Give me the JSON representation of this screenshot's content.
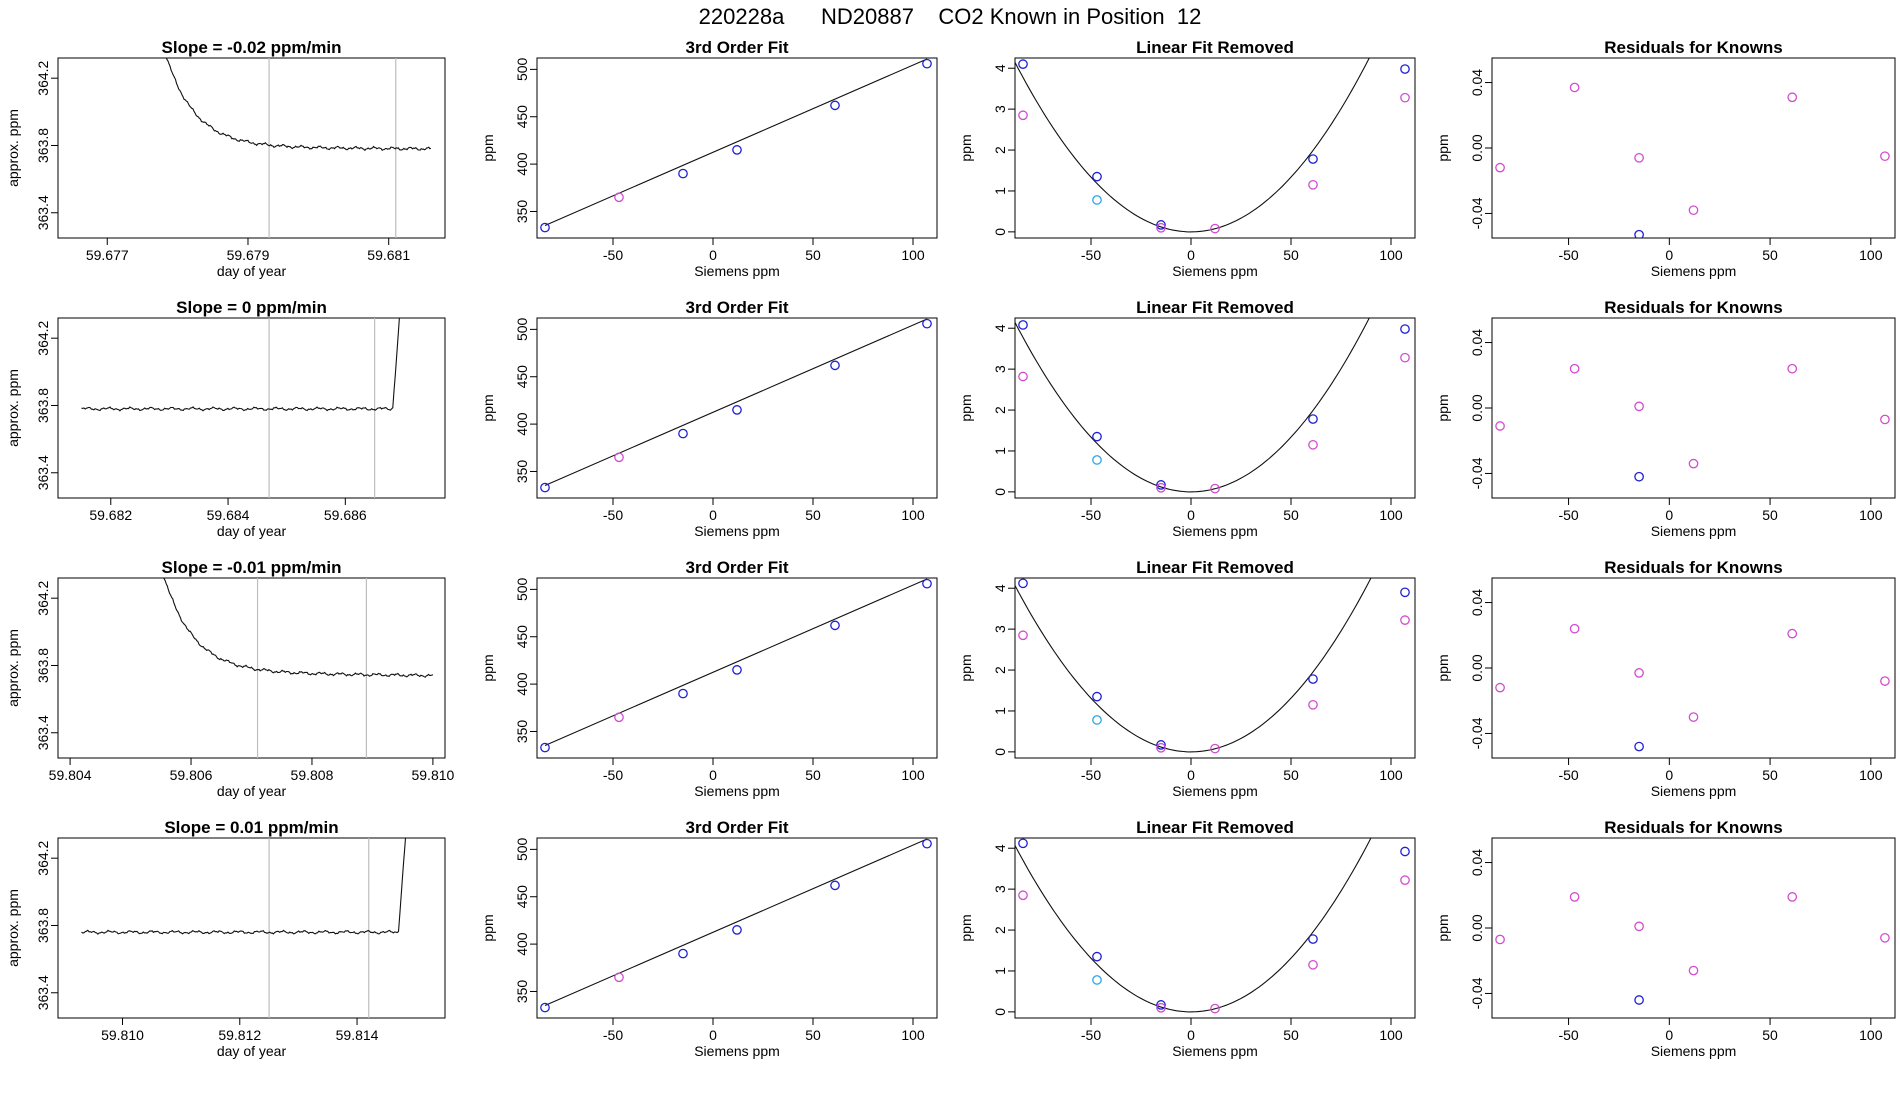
{
  "page": {
    "title": "220228a      ND20887    CO2 Known in Position  12"
  },
  "colors": {
    "blue": "#1f1fd6",
    "magenta": "#d24cd2",
    "cyan": "#2aa7e6",
    "red": "#e02020",
    "line": "#111111",
    "vline": "#bdbdbd"
  },
  "common": {
    "fit_xlabel": "Siemens ppm",
    "fit_ylabel": "ppm",
    "ts_xlabel": "day of year",
    "ts_ylabel": "approx. ppm",
    "fit3_title": "3rd Order Fit",
    "lin_title": "Linear Fit Removed",
    "res_title": "Residuals for Knowns",
    "x_ticks": [
      -50,
      0,
      50,
      100
    ],
    "fit3_yticks": [
      350,
      400,
      450,
      500
    ],
    "lin_yticks": [
      0,
      1,
      2,
      3,
      4
    ],
    "res_yticks": [
      -0.04,
      0.0,
      0.04
    ],
    "res_ytick_labels": [
      "-0.04",
      "0.00",
      "0.04"
    ],
    "ts_yticks": [
      363.4,
      363.8,
      364.2
    ],
    "ts_ytick_labels": [
      "363.4",
      "363.8",
      "364.2"
    ]
  },
  "chart_data": [
    {
      "type": "line",
      "title": "Slope =  -0.02  ppm/min",
      "xlabel": "day of year",
      "ylabel": "approx. ppm",
      "xlim": [
        59.6763,
        59.6818
      ],
      "ylim": [
        363.25,
        364.32
      ],
      "x_ticks": [
        59.677,
        59.679,
        59.681
      ],
      "x_tick_labels": [
        "59.677",
        "59.679",
        "59.681"
      ],
      "vlines": [
        59.6793,
        59.6811
      ],
      "x_start": 59.6776,
      "x_end": 59.6816,
      "shape": "decay_from_high",
      "base": 363.79,
      "end_value": 363.78
    },
    {
      "type": "scatter",
      "title": "3rd Order Fit",
      "xlabel": "Siemens ppm",
      "ylabel": "ppm",
      "xlim": [
        -88,
        112
      ],
      "ylim": [
        322,
        512
      ],
      "points": [
        {
          "x": -84,
          "y": 333,
          "color": "blue"
        },
        {
          "x": -47,
          "y": 365,
          "color": "magenta"
        },
        {
          "x": -15,
          "y": 390,
          "color": "blue"
        },
        {
          "x": 12,
          "y": 415,
          "color": "blue"
        },
        {
          "x": 61,
          "y": 462,
          "color": "blue"
        },
        {
          "x": 107,
          "y": 506,
          "color": "blue"
        }
      ],
      "curve": {
        "kind": "linear",
        "a": 412.5,
        "b": 0.92
      }
    },
    {
      "type": "scatter",
      "title": "Linear Fit Removed",
      "xlabel": "Siemens ppm",
      "ylabel": "ppm",
      "xlim": [
        -88,
        112
      ],
      "ylim": [
        -0.15,
        4.25
      ],
      "points": [
        {
          "x": -84,
          "y": 4.1,
          "color": "blue"
        },
        {
          "x": -84,
          "y": 2.85,
          "color": "magenta"
        },
        {
          "x": -47,
          "y": 1.35,
          "color": "blue"
        },
        {
          "x": -47,
          "y": 0.78,
          "color": "cyan"
        },
        {
          "x": -15,
          "y": 0.17,
          "color": "blue"
        },
        {
          "x": -15,
          "y": 0.1,
          "color": "magenta"
        },
        {
          "x": 12,
          "y": 0.08,
          "color": "magenta"
        },
        {
          "x": 61,
          "y": 1.78,
          "color": "blue"
        },
        {
          "x": 61,
          "y": 1.15,
          "color": "magenta"
        },
        {
          "x": 107,
          "y": 3.98,
          "color": "blue"
        },
        {
          "x": 107,
          "y": 3.28,
          "color": "magenta"
        }
      ],
      "curve": {
        "kind": "parabola",
        "k": 0.000535,
        "x0": -88,
        "x1": 110
      }
    },
    {
      "type": "scatter",
      "title": "Residuals for Knowns",
      "xlabel": "Siemens ppm",
      "ylabel": "ppm",
      "xlim": [
        -88,
        112
      ],
      "ylim": [
        -0.055,
        0.055
      ],
      "points": [
        {
          "x": -84,
          "y": -0.012,
          "color": "magenta"
        },
        {
          "x": -47,
          "y": 0.037,
          "color": "magenta"
        },
        {
          "x": -15,
          "y": -0.006,
          "color": "magenta"
        },
        {
          "x": -15,
          "y": -0.053,
          "color": "blue"
        },
        {
          "x": 12,
          "y": -0.038,
          "color": "magenta"
        },
        {
          "x": 61,
          "y": 0.031,
          "color": "magenta"
        },
        {
          "x": 107,
          "y": -0.005,
          "color": "magenta"
        }
      ]
    },
    {
      "type": "line",
      "title": "Slope =  0  ppm/min",
      "xlabel": "day of year",
      "ylabel": "approx. ppm",
      "xlim": [
        59.6811,
        59.6877
      ],
      "ylim": [
        363.25,
        364.32
      ],
      "x_ticks": [
        59.682,
        59.684,
        59.686
      ],
      "x_tick_labels": [
        "59.682",
        "59.684",
        "59.686"
      ],
      "vlines": [
        59.6847,
        59.6865
      ],
      "x_start": 59.6815,
      "x_end": 59.687,
      "shape": "flat_then_spike",
      "base": 363.78,
      "end_value": 363.78
    },
    {
      "type": "scatter",
      "title": "3rd Order Fit",
      "xlabel": "Siemens ppm",
      "ylabel": "ppm",
      "xlim": [
        -88,
        112
      ],
      "ylim": [
        322,
        512
      ],
      "points": [
        {
          "x": -84,
          "y": 333,
          "color": "blue"
        },
        {
          "x": -47,
          "y": 365,
          "color": "magenta"
        },
        {
          "x": -15,
          "y": 390,
          "color": "blue"
        },
        {
          "x": 12,
          "y": 415,
          "color": "blue"
        },
        {
          "x": 61,
          "y": 462,
          "color": "blue"
        },
        {
          "x": 107,
          "y": 506,
          "color": "blue"
        }
      ],
      "curve": {
        "kind": "linear",
        "a": 412.5,
        "b": 0.92
      }
    },
    {
      "type": "scatter",
      "title": "Linear Fit Removed",
      "xlabel": "Siemens ppm",
      "ylabel": "ppm",
      "xlim": [
        -88,
        112
      ],
      "ylim": [
        -0.15,
        4.25
      ],
      "points": [
        {
          "x": -84,
          "y": 4.08,
          "color": "blue"
        },
        {
          "x": -84,
          "y": 2.82,
          "color": "magenta"
        },
        {
          "x": -47,
          "y": 1.35,
          "color": "blue"
        },
        {
          "x": -47,
          "y": 0.78,
          "color": "cyan"
        },
        {
          "x": -15,
          "y": 0.17,
          "color": "blue"
        },
        {
          "x": -15,
          "y": 0.1,
          "color": "magenta"
        },
        {
          "x": 12,
          "y": 0.08,
          "color": "magenta"
        },
        {
          "x": 61,
          "y": 1.78,
          "color": "blue"
        },
        {
          "x": 61,
          "y": 1.15,
          "color": "magenta"
        },
        {
          "x": 107,
          "y": 3.98,
          "color": "blue"
        },
        {
          "x": 107,
          "y": 3.28,
          "color": "magenta"
        }
      ],
      "curve": {
        "kind": "parabola",
        "k": 0.000535,
        "x0": -88,
        "x1": 110
      }
    },
    {
      "type": "scatter",
      "title": "Residuals for Knowns",
      "xlabel": "Siemens ppm",
      "ylabel": "ppm",
      "xlim": [
        -88,
        112
      ],
      "ylim": [
        -0.055,
        0.055
      ],
      "points": [
        {
          "x": -84,
          "y": -0.011,
          "color": "magenta"
        },
        {
          "x": -47,
          "y": 0.024,
          "color": "magenta"
        },
        {
          "x": -15,
          "y": 0.001,
          "color": "magenta"
        },
        {
          "x": -15,
          "y": -0.042,
          "color": "blue"
        },
        {
          "x": 12,
          "y": -0.034,
          "color": "magenta"
        },
        {
          "x": 61,
          "y": 0.024,
          "color": "magenta"
        },
        {
          "x": 107,
          "y": -0.007,
          "color": "magenta"
        }
      ]
    },
    {
      "type": "line",
      "title": "Slope =  -0.01  ppm/min",
      "xlabel": "day of year",
      "ylabel": "approx. ppm",
      "xlim": [
        59.8038,
        59.8102
      ],
      "ylim": [
        363.25,
        364.32
      ],
      "x_ticks": [
        59.804,
        59.806,
        59.808,
        59.81
      ],
      "x_tick_labels": [
        "59.804",
        "59.806",
        "59.808",
        "59.810"
      ],
      "vlines": [
        59.8071,
        59.8089
      ],
      "x_start": 59.8053,
      "x_end": 59.81,
      "shape": "decay_from_high",
      "base": 363.76,
      "end_value": 363.74
    },
    {
      "type": "scatter",
      "title": "3rd Order Fit",
      "xlabel": "Siemens ppm",
      "ylabel": "ppm",
      "xlim": [
        -88,
        112
      ],
      "ylim": [
        322,
        512
      ],
      "points": [
        {
          "x": -84,
          "y": 333,
          "color": "blue"
        },
        {
          "x": -47,
          "y": 365,
          "color": "magenta"
        },
        {
          "x": -15,
          "y": 390,
          "color": "blue"
        },
        {
          "x": 12,
          "y": 415,
          "color": "blue"
        },
        {
          "x": 61,
          "y": 462,
          "color": "blue"
        },
        {
          "x": 107,
          "y": 506,
          "color": "blue"
        }
      ],
      "curve": {
        "kind": "linear",
        "a": 412.5,
        "b": 0.92
      }
    },
    {
      "type": "scatter",
      "title": "Linear Fit Removed",
      "xlabel": "Siemens ppm",
      "ylabel": "ppm",
      "xlim": [
        -88,
        112
      ],
      "ylim": [
        -0.15,
        4.25
      ],
      "points": [
        {
          "x": -84,
          "y": 4.12,
          "color": "blue"
        },
        {
          "x": -84,
          "y": 2.85,
          "color": "magenta"
        },
        {
          "x": -47,
          "y": 1.35,
          "color": "blue"
        },
        {
          "x": -47,
          "y": 0.78,
          "color": "cyan"
        },
        {
          "x": -15,
          "y": 0.17,
          "color": "blue"
        },
        {
          "x": -15,
          "y": 0.1,
          "color": "magenta"
        },
        {
          "x": 12,
          "y": 0.08,
          "color": "magenta"
        },
        {
          "x": 61,
          "y": 1.78,
          "color": "blue"
        },
        {
          "x": 61,
          "y": 1.15,
          "color": "magenta"
        },
        {
          "x": 107,
          "y": 3.9,
          "color": "blue"
        },
        {
          "x": 107,
          "y": 3.22,
          "color": "magenta"
        }
      ],
      "curve": {
        "kind": "parabola",
        "k": 0.000525,
        "x0": -88,
        "x1": 110
      }
    },
    {
      "type": "scatter",
      "title": "Residuals for Knowns",
      "xlabel": "Siemens ppm",
      "ylabel": "ppm",
      "xlim": [
        -88,
        112
      ],
      "ylim": [
        -0.055,
        0.055
      ],
      "points": [
        {
          "x": -84,
          "y": -0.012,
          "color": "magenta"
        },
        {
          "x": -47,
          "y": 0.024,
          "color": "magenta"
        },
        {
          "x": -15,
          "y": -0.003,
          "color": "magenta"
        },
        {
          "x": -15,
          "y": -0.048,
          "color": "blue"
        },
        {
          "x": 12,
          "y": -0.03,
          "color": "magenta"
        },
        {
          "x": 61,
          "y": 0.021,
          "color": "magenta"
        },
        {
          "x": 107,
          "y": -0.008,
          "color": "magenta"
        }
      ]
    },
    {
      "type": "line",
      "title": "Slope =  0.01  ppm/min",
      "xlabel": "day of year",
      "ylabel": "approx. ppm",
      "xlim": [
        59.8089,
        59.8155
      ],
      "ylim": [
        363.25,
        364.32
      ],
      "x_ticks": [
        59.81,
        59.812,
        59.814
      ],
      "x_tick_labels": [
        "59.810",
        "59.812",
        "59.814"
      ],
      "vlines": [
        59.8125,
        59.8142
      ],
      "x_start": 59.8093,
      "x_end": 59.8149,
      "shape": "flat_then_spike",
      "base": 363.76,
      "end_value": 363.76
    },
    {
      "type": "scatter",
      "title": "3rd Order Fit",
      "xlabel": "Siemens ppm",
      "ylabel": "ppm",
      "xlim": [
        -88,
        112
      ],
      "ylim": [
        322,
        512
      ],
      "points": [
        {
          "x": -84,
          "y": 333,
          "color": "blue"
        },
        {
          "x": -47,
          "y": 365,
          "color": "magenta"
        },
        {
          "x": -15,
          "y": 390,
          "color": "blue"
        },
        {
          "x": 12,
          "y": 415,
          "color": "blue"
        },
        {
          "x": 61,
          "y": 462,
          "color": "blue"
        },
        {
          "x": 107,
          "y": 506,
          "color": "blue"
        }
      ],
      "curve": {
        "kind": "linear",
        "a": 412.5,
        "b": 0.92
      }
    },
    {
      "type": "scatter",
      "title": "Linear Fit Removed",
      "xlabel": "Siemens ppm",
      "ylabel": "ppm",
      "xlim": [
        -88,
        112
      ],
      "ylim": [
        -0.15,
        4.25
      ],
      "points": [
        {
          "x": -84,
          "y": 4.12,
          "color": "blue"
        },
        {
          "x": -84,
          "y": 2.85,
          "color": "magenta"
        },
        {
          "x": -47,
          "y": 1.35,
          "color": "blue"
        },
        {
          "x": -47,
          "y": 0.78,
          "color": "cyan"
        },
        {
          "x": -15,
          "y": 0.17,
          "color": "blue"
        },
        {
          "x": -15,
          "y": 0.1,
          "color": "magenta"
        },
        {
          "x": 12,
          "y": 0.08,
          "color": "magenta"
        },
        {
          "x": 61,
          "y": 1.78,
          "color": "blue"
        },
        {
          "x": 61,
          "y": 1.15,
          "color": "magenta"
        },
        {
          "x": 107,
          "y": 3.92,
          "color": "blue"
        },
        {
          "x": 107,
          "y": 3.22,
          "color": "magenta"
        }
      ],
      "curve": {
        "kind": "parabola",
        "k": 0.000525,
        "x0": -88,
        "x1": 110
      }
    },
    {
      "type": "scatter",
      "title": "Residuals for Knowns",
      "xlabel": "Siemens ppm",
      "ylabel": "ppm",
      "xlim": [
        -88,
        112
      ],
      "ylim": [
        -0.055,
        0.055
      ],
      "points": [
        {
          "x": -84,
          "y": -0.007,
          "color": "magenta"
        },
        {
          "x": -47,
          "y": 0.019,
          "color": "magenta"
        },
        {
          "x": -15,
          "y": 0.001,
          "color": "magenta"
        },
        {
          "x": -15,
          "y": -0.044,
          "color": "blue"
        },
        {
          "x": 12,
          "y": -0.026,
          "color": "magenta"
        },
        {
          "x": 61,
          "y": 0.019,
          "color": "magenta"
        },
        {
          "x": 107,
          "y": -0.006,
          "color": "magenta"
        }
      ]
    }
  ]
}
